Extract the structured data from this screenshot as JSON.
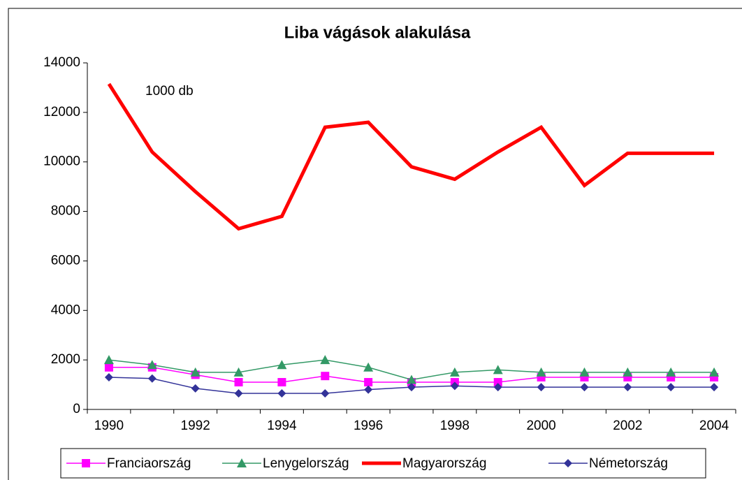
{
  "chart_data": {
    "type": "line",
    "title": "Liba vágások alakulása",
    "annotation": "1000 db",
    "categories": [
      "1990",
      null,
      "1992",
      null,
      "1994",
      null,
      "1996",
      null,
      "1998",
      null,
      "2000",
      null,
      "2002",
      null,
      "2004"
    ],
    "series": [
      {
        "name": "Franciaország",
        "color": "#ff00ff",
        "marker": "square",
        "values": [
          1700,
          1700,
          1400,
          1100,
          1100,
          1350,
          1100,
          1100,
          1100,
          1100,
          1300,
          1300,
          1300,
          1300,
          1300
        ]
      },
      {
        "name": "Lenygelország",
        "color": "#339966",
        "marker": "triangle",
        "values": [
          2000,
          1800,
          1500,
          1500,
          1800,
          2000,
          1700,
          1200,
          1500,
          1600,
          1500,
          1500,
          1500,
          1500,
          1500
        ]
      },
      {
        "name": "Magyarország",
        "color": "#ff0000",
        "marker": "none",
        "values": [
          13150,
          10400,
          8800,
          7300,
          7800,
          11400,
          11600,
          9800,
          9300,
          10400,
          11400,
          9050,
          10350,
          10350,
          10350
        ]
      },
      {
        "name": "Németország",
        "color": "#333399",
        "marker": "diamond",
        "values": [
          1300,
          1250,
          850,
          650,
          650,
          650,
          800,
          900,
          950,
          900,
          900,
          900,
          900,
          900,
          900
        ]
      }
    ],
    "ylim": [
      0,
      14000
    ],
    "yticks": [
      0,
      2000,
      4000,
      6000,
      8000,
      10000,
      12000,
      14000
    ],
    "grid": false,
    "legend": "bottom"
  }
}
